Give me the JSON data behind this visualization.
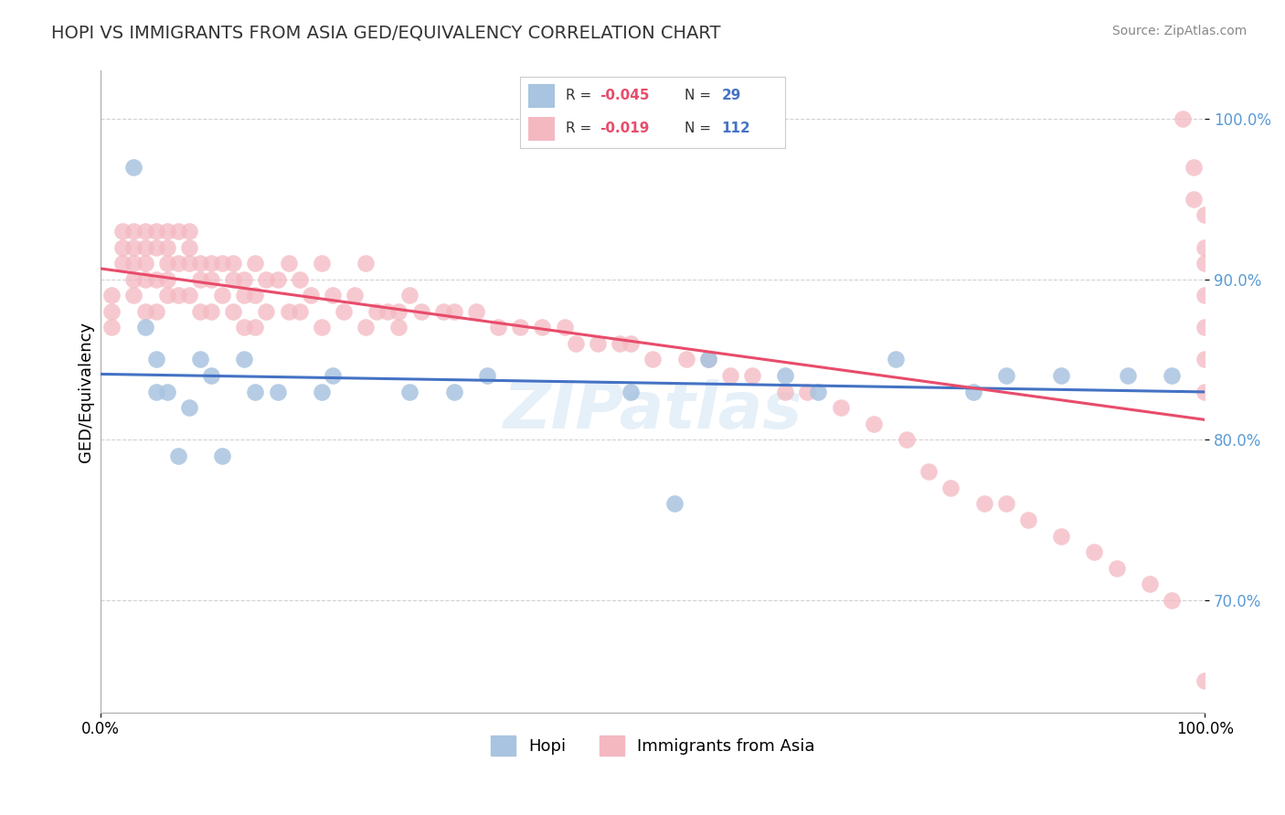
{
  "title": "HOPI VS IMMIGRANTS FROM ASIA GED/EQUIVALENCY CORRELATION CHART",
  "source": "Source: ZipAtlas.com",
  "ylabel": "GED/Equivalency",
  "xlim": [
    0,
    100
  ],
  "ylim": [
    63,
    103
  ],
  "ytick_vals": [
    70,
    80,
    90,
    100
  ],
  "ytick_labels": [
    "70.0%",
    "80.0%",
    "90.0%",
    "100.0%"
  ],
  "hopi_color": "#a8c4e0",
  "asia_color": "#f4b8c1",
  "trendline_hopi_color": "#4472c4",
  "trendline_asia_color": "#e84c6b",
  "background_color": "#ffffff",
  "watermark": "ZIPatlas",
  "legend_labels": [
    "Hopi",
    "Immigrants from Asia"
  ],
  "legend_r1": "-0.045",
  "legend_n1": "29",
  "legend_r2": "-0.019",
  "legend_n2": "112",
  "hopi_x": [
    3,
    4,
    5,
    5,
    6,
    7,
    8,
    9,
    10,
    11,
    13,
    14,
    16,
    20,
    21,
    28,
    32,
    35,
    48,
    52,
    55,
    62,
    65,
    72,
    79,
    82,
    87,
    93,
    97
  ],
  "hopi_y": [
    97,
    87,
    85,
    83,
    83,
    79,
    82,
    85,
    84,
    79,
    85,
    83,
    83,
    83,
    84,
    83,
    83,
    84,
    83,
    76,
    85,
    84,
    83,
    85,
    83,
    84,
    84,
    84,
    84
  ],
  "asia_x": [
    1,
    1,
    1,
    2,
    2,
    2,
    3,
    3,
    3,
    3,
    3,
    4,
    4,
    4,
    4,
    4,
    5,
    5,
    5,
    5,
    6,
    6,
    6,
    6,
    6,
    7,
    7,
    7,
    8,
    8,
    8,
    8,
    9,
    9,
    9,
    10,
    10,
    10,
    11,
    11,
    12,
    12,
    12,
    13,
    13,
    13,
    14,
    14,
    14,
    15,
    15,
    16,
    17,
    17,
    18,
    18,
    19,
    20,
    20,
    21,
    22,
    23,
    24,
    24,
    25,
    26,
    27,
    27,
    28,
    29,
    31,
    32,
    34,
    36,
    38,
    40,
    42,
    43,
    45,
    47,
    48,
    50,
    53,
    55,
    57,
    59,
    62,
    64,
    67,
    70,
    73,
    75,
    77,
    80,
    82,
    84,
    87,
    90,
    92,
    95,
    97,
    98,
    99,
    99,
    100,
    100,
    100,
    100,
    100,
    100,
    100,
    100
  ],
  "asia_y": [
    89,
    88,
    87,
    93,
    92,
    91,
    93,
    92,
    91,
    90,
    89,
    93,
    92,
    91,
    90,
    88,
    93,
    92,
    90,
    88,
    93,
    92,
    91,
    90,
    89,
    93,
    91,
    89,
    93,
    92,
    91,
    89,
    91,
    90,
    88,
    91,
    90,
    88,
    91,
    89,
    91,
    90,
    88,
    90,
    89,
    87,
    91,
    89,
    87,
    90,
    88,
    90,
    91,
    88,
    90,
    88,
    89,
    91,
    87,
    89,
    88,
    89,
    91,
    87,
    88,
    88,
    88,
    87,
    89,
    88,
    88,
    88,
    88,
    87,
    87,
    87,
    87,
    86,
    86,
    86,
    86,
    85,
    85,
    85,
    84,
    84,
    83,
    83,
    82,
    81,
    80,
    78,
    77,
    76,
    76,
    75,
    74,
    73,
    72,
    71,
    70,
    100,
    97,
    95,
    94,
    92,
    91,
    89,
    87,
    85,
    83,
    65
  ]
}
